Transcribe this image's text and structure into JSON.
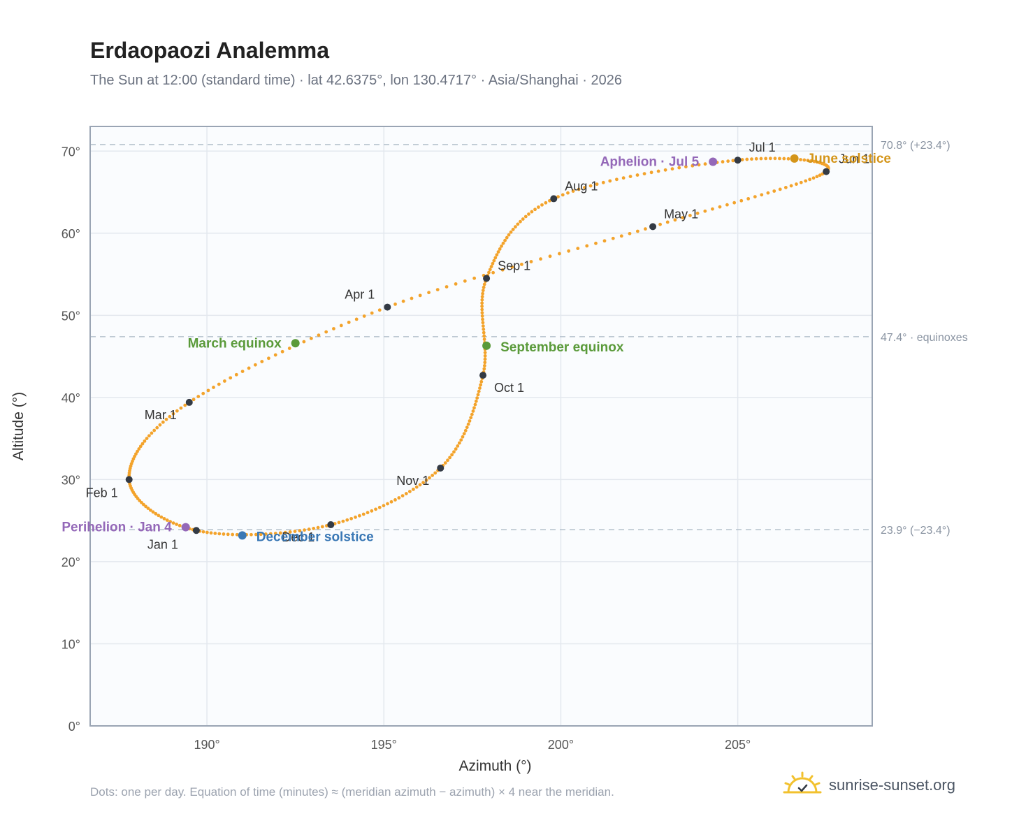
{
  "header": {
    "title": "Erdaopaozi Analemma",
    "subtitle": "The Sun at 12:00 (standard time) · lat 42.6375°, lon 130.4717° · Asia/Shanghai · 2026"
  },
  "footer": {
    "note": "Dots: one per day. Equation of time (minutes) ≈ (meridian azimuth − azimuth) × 4 near the meridian.",
    "brand": "sunrise-sunset.org"
  },
  "colors": {
    "path": "#f3a32b",
    "month_marker": "#333a44",
    "equinox": "#5a9a3a",
    "june_solstice": "#d4951a",
    "december_solstice": "#3a78b5",
    "apsis": "#9468b8",
    "reference_line": "#b4c0cc",
    "grid": "#e3e8ee",
    "plot_bg": "#fafcfe",
    "frame": "#9aa5b4"
  },
  "chart_data": {
    "type": "scatter",
    "xlabel": "Azimuth (°)",
    "ylabel": "Altitude (°)",
    "xlim": [
      186.7,
      208.8
    ],
    "ylim": [
      0,
      73
    ],
    "x_ticks": [
      190,
      195,
      200,
      205
    ],
    "x_tick_labels": [
      "190°",
      "195°",
      "200°",
      "205°"
    ],
    "y_ticks": [
      0,
      10,
      20,
      30,
      40,
      50,
      60,
      70
    ],
    "y_tick_labels": [
      "0°",
      "10°",
      "20°",
      "30°",
      "40°",
      "50°",
      "60°",
      "70°"
    ],
    "grid": true,
    "reference_lines": [
      {
        "y": 70.8,
        "label": "70.8° (+23.4°)"
      },
      {
        "y": 47.4,
        "label": "47.4° · equinoxes"
      },
      {
        "y": 23.9,
        "label": "23.9° (−23.4°)"
      }
    ],
    "series": [
      {
        "points": [
          [
            189.7,
            23.8
          ],
          [
            187.8,
            30.0
          ],
          [
            189.5,
            39.4
          ],
          [
            195.1,
            51.0
          ],
          [
            202.6,
            60.8
          ],
          [
            207.5,
            67.5
          ],
          [
            205.0,
            68.9
          ],
          [
            199.8,
            64.2
          ],
          [
            197.9,
            54.5
          ],
          [
            197.8,
            42.7
          ],
          [
            196.6,
            31.4
          ],
          [
            193.5,
            24.5
          ],
          [
            189.7,
            23.8
          ]
        ]
      }
    ],
    "month_markers": [
      {
        "label": "Jan 1",
        "x": 189.7,
        "y": 23.8
      },
      {
        "label": "Feb 1",
        "x": 187.8,
        "y": 30.0
      },
      {
        "label": "Mar 1",
        "x": 189.5,
        "y": 39.4
      },
      {
        "label": "Apr 1",
        "x": 195.1,
        "y": 51.0
      },
      {
        "label": "May 1",
        "x": 202.6,
        "y": 60.8
      },
      {
        "label": "Jun 1",
        "x": 207.5,
        "y": 67.5
      },
      {
        "label": "Jul 1",
        "x": 205.0,
        "y": 68.9
      },
      {
        "label": "Aug 1",
        "x": 199.8,
        "y": 64.2
      },
      {
        "label": "Sep 1",
        "x": 197.9,
        "y": 54.5
      },
      {
        "label": "Oct 1",
        "x": 197.8,
        "y": 42.7
      },
      {
        "label": "Nov 1",
        "x": 196.6,
        "y": 31.4
      },
      {
        "label": "Dec 1",
        "x": 193.5,
        "y": 24.5
      }
    ],
    "events": [
      {
        "label": "March equinox",
        "x": 192.5,
        "y": 46.6,
        "kind": "equinox"
      },
      {
        "label": "September equinox",
        "x": 197.9,
        "y": 46.3,
        "kind": "equinox"
      },
      {
        "label": "June solstice",
        "x": 206.6,
        "y": 69.1,
        "kind": "june_solstice"
      },
      {
        "label": "December solstice",
        "x": 191.0,
        "y": 23.2,
        "kind": "december_solstice"
      },
      {
        "label": "Aphelion · Jul 5",
        "x": 204.3,
        "y": 68.7,
        "kind": "apsis"
      },
      {
        "label": "Perihelion · Jan 4",
        "x": 189.4,
        "y": 24.2,
        "kind": "apsis"
      }
    ]
  }
}
